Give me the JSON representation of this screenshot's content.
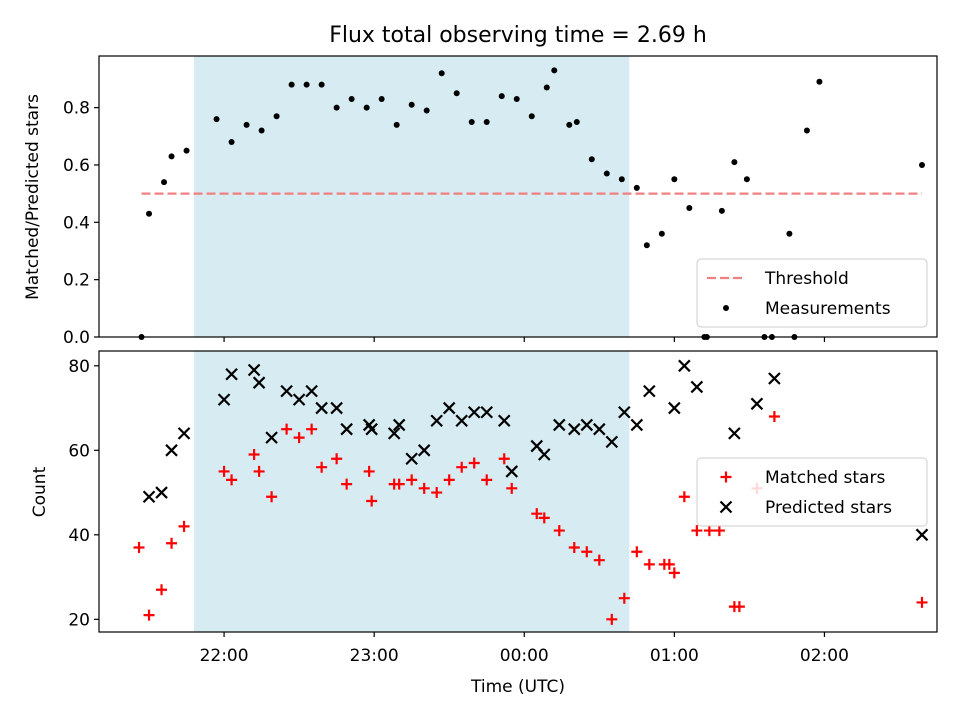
{
  "chart_data": [
    {
      "type": "scatter",
      "title": "Flux total observing time = 2.69 h",
      "ylabel": "Matched/Predicted stars",
      "xlabel": "",
      "ylim": [
        0,
        0.98
      ],
      "yticks": [
        "0.0",
        "0.2",
        "0.4",
        "0.6",
        "0.8"
      ],
      "shaded_span": [
        "21:48",
        "00:42"
      ],
      "threshold": {
        "name": "Threshold",
        "value": 0.5,
        "x": [
          "21:27",
          "02:39"
        ],
        "color": "#f08080"
      },
      "series": [
        {
          "name": "Measurements",
          "color": "#000000",
          "points": [
            [
              "21:27",
              0.0
            ],
            [
              "21:30",
              0.43
            ],
            [
              "21:36",
              0.54
            ],
            [
              "21:39",
              0.63
            ],
            [
              "21:45",
              0.65
            ],
            [
              "21:57",
              0.76
            ],
            [
              "22:03",
              0.68
            ],
            [
              "22:09",
              0.74
            ],
            [
              "22:15",
              0.72
            ],
            [
              "22:21",
              0.77
            ],
            [
              "22:27",
              0.88
            ],
            [
              "22:33",
              0.88
            ],
            [
              "22:39",
              0.88
            ],
            [
              "22:45",
              0.8
            ],
            [
              "22:51",
              0.83
            ],
            [
              "22:57",
              0.8
            ],
            [
              "23:03",
              0.83
            ],
            [
              "23:09",
              0.74
            ],
            [
              "23:15",
              0.81
            ],
            [
              "23:21",
              0.79
            ],
            [
              "23:27",
              0.92
            ],
            [
              "23:33",
              0.85
            ],
            [
              "23:39",
              0.75
            ],
            [
              "23:45",
              0.75
            ],
            [
              "23:51",
              0.84
            ],
            [
              "23:57",
              0.83
            ],
            [
              "00:03",
              0.77
            ],
            [
              "00:09",
              0.87
            ],
            [
              "00:12",
              0.93
            ],
            [
              "00:18",
              0.74
            ],
            [
              "00:21",
              0.75
            ],
            [
              "00:27",
              0.62
            ],
            [
              "00:33",
              0.57
            ],
            [
              "00:39",
              0.55
            ],
            [
              "00:45",
              0.52
            ],
            [
              "00:49",
              0.32
            ],
            [
              "00:55",
              0.36
            ],
            [
              "01:00",
              0.55
            ],
            [
              "01:06",
              0.45
            ],
            [
              "01:12",
              0.0
            ],
            [
              "01:13",
              0.0
            ],
            [
              "01:19",
              0.44
            ],
            [
              "01:24",
              0.61
            ],
            [
              "01:29",
              0.55
            ],
            [
              "01:36",
              0.0
            ],
            [
              "01:39",
              0.0
            ],
            [
              "01:46",
              0.36
            ],
            [
              "01:48",
              0.0
            ],
            [
              "01:53",
              0.72
            ],
            [
              "01:58",
              0.89
            ],
            [
              "02:39",
              0.6
            ]
          ]
        }
      ],
      "legend": {
        "placement": "lower right",
        "entries": [
          "Threshold",
          "Measurements"
        ]
      }
    },
    {
      "type": "scatter",
      "xlabel": "Time (UTC)",
      "ylabel": "Count",
      "ylim": [
        17,
        83.5
      ],
      "yticks": [
        "20",
        "40",
        "60",
        "80"
      ],
      "xticks": [
        "22:00",
        "23:00",
        "00:00",
        "01:00",
        "02:00"
      ],
      "shaded_span": [
        "21:48",
        "00:42"
      ],
      "series": [
        {
          "name": "Matched stars",
          "marker": "+",
          "color": "#ff0000",
          "points": [
            [
              "21:26",
              37
            ],
            [
              "21:30",
              21
            ],
            [
              "21:35",
              27
            ],
            [
              "21:39",
              38
            ],
            [
              "21:44",
              42
            ],
            [
              "22:00",
              55
            ],
            [
              "22:03",
              53
            ],
            [
              "22:12",
              59
            ],
            [
              "22:14",
              55
            ],
            [
              "22:19",
              49
            ],
            [
              "22:25",
              65
            ],
            [
              "22:30",
              63
            ],
            [
              "22:35",
              65
            ],
            [
              "22:39",
              56
            ],
            [
              "22:45",
              58
            ],
            [
              "22:49",
              52
            ],
            [
              "22:58",
              55
            ],
            [
              "22:59",
              48
            ],
            [
              "23:08",
              52
            ],
            [
              "23:10",
              52
            ],
            [
              "23:15",
              53
            ],
            [
              "23:20",
              51
            ],
            [
              "23:25",
              50
            ],
            [
              "23:30",
              53
            ],
            [
              "23:35",
              56
            ],
            [
              "23:40",
              57
            ],
            [
              "23:45",
              53
            ],
            [
              "23:52",
              58
            ],
            [
              "23:55",
              51
            ],
            [
              "00:05",
              45
            ],
            [
              "00:08",
              44
            ],
            [
              "00:14",
              41
            ],
            [
              "00:20",
              37
            ],
            [
              "00:25",
              36
            ],
            [
              "00:30",
              34
            ],
            [
              "00:35",
              20
            ],
            [
              "00:40",
              25
            ],
            [
              "00:45",
              36
            ],
            [
              "00:50",
              33
            ],
            [
              "00:56",
              33
            ],
            [
              "00:58",
              33
            ],
            [
              "01:00",
              31
            ],
            [
              "01:04",
              49
            ],
            [
              "01:09",
              41
            ],
            [
              "01:14",
              41
            ],
            [
              "01:18",
              41
            ],
            [
              "01:24",
              23
            ],
            [
              "01:26",
              23
            ],
            [
              "01:33",
              51
            ],
            [
              "01:40",
              68
            ],
            [
              "02:39",
              24
            ]
          ]
        },
        {
          "name": "Predicted stars",
          "marker": "x",
          "color": "#000000",
          "points": [
            [
              "21:30",
              49
            ],
            [
              "21:35",
              50
            ],
            [
              "21:39",
              60
            ],
            [
              "21:44",
              64
            ],
            [
              "22:00",
              72
            ],
            [
              "22:03",
              78
            ],
            [
              "22:12",
              79
            ],
            [
              "22:14",
              76
            ],
            [
              "22:19",
              63
            ],
            [
              "22:25",
              74
            ],
            [
              "22:30",
              72
            ],
            [
              "22:35",
              74
            ],
            [
              "22:39",
              70
            ],
            [
              "22:45",
              70
            ],
            [
              "22:49",
              65
            ],
            [
              "22:58",
              66
            ],
            [
              "22:59",
              65
            ],
            [
              "23:08",
              64
            ],
            [
              "23:10",
              66
            ],
            [
              "23:15",
              58
            ],
            [
              "23:20",
              60
            ],
            [
              "23:25",
              67
            ],
            [
              "23:30",
              70
            ],
            [
              "23:35",
              67
            ],
            [
              "23:40",
              69
            ],
            [
              "23:45",
              69
            ],
            [
              "23:52",
              67
            ],
            [
              "23:55",
              55
            ],
            [
              "00:05",
              61
            ],
            [
              "00:08",
              59
            ],
            [
              "00:14",
              66
            ],
            [
              "00:20",
              65
            ],
            [
              "00:25",
              66
            ],
            [
              "00:30",
              65
            ],
            [
              "00:35",
              62
            ],
            [
              "00:40",
              69
            ],
            [
              "00:45",
              66
            ],
            [
              "00:50",
              74
            ],
            [
              "01:00",
              70
            ],
            [
              "01:04",
              80
            ],
            [
              "01:09",
              75
            ],
            [
              "01:24",
              64
            ],
            [
              "01:33",
              71
            ],
            [
              "01:40",
              77
            ],
            [
              "02:39",
              40
            ]
          ]
        }
      ],
      "legend": {
        "placement": "center right",
        "entries": [
          "Matched stars",
          "Predicted stars"
        ]
      }
    }
  ]
}
